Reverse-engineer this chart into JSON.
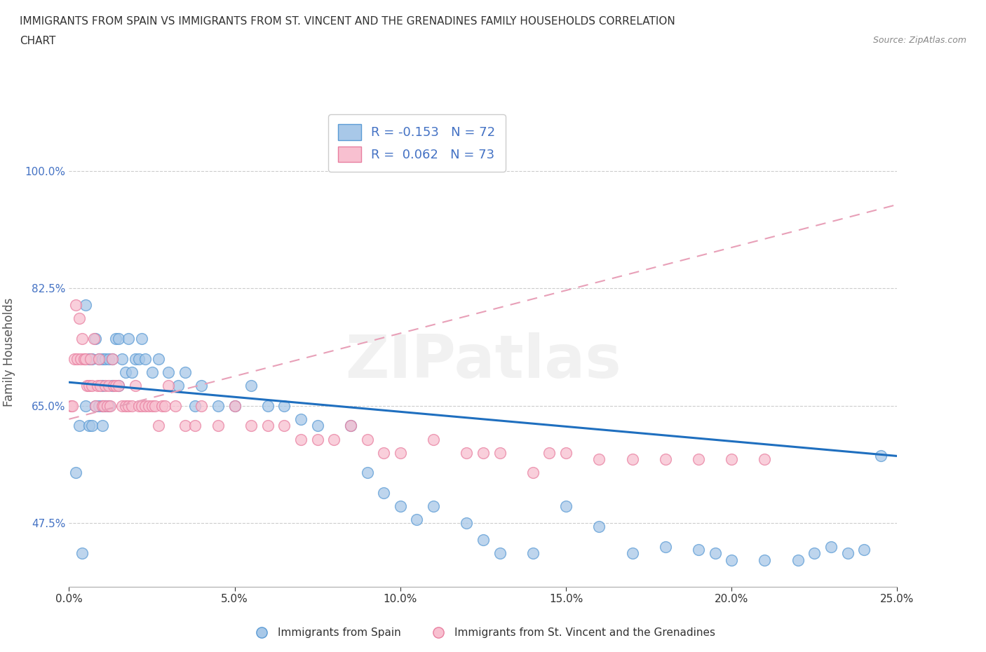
{
  "title_line1": "IMMIGRANTS FROM SPAIN VS IMMIGRANTS FROM ST. VINCENT AND THE GRENADINES FAMILY HOUSEHOLDS CORRELATION",
  "title_line2": "CHART",
  "source": "Source: ZipAtlas.com",
  "ylabel": "Family Households",
  "xlabel": "",
  "xlim": [
    0.0,
    25.0
  ],
  "ylim": [
    38.0,
    108.0
  ],
  "xticks": [
    0.0,
    5.0,
    10.0,
    15.0,
    20.0,
    25.0
  ],
  "yticks": [
    47.5,
    65.0,
    82.5,
    100.0
  ],
  "ytick_labels": [
    "47.5%",
    "65.0%",
    "82.5%",
    "100.0%"
  ],
  "xtick_labels": [
    "0.0%",
    "5.0%",
    "10.0%",
    "15.0%",
    "20.0%",
    "25.0%"
  ],
  "spain_color": "#A8C8E8",
  "spain_edge_color": "#5B9BD5",
  "stvincent_color": "#F8C0D0",
  "stvincent_edge_color": "#E87FA0",
  "spain_R": -0.153,
  "spain_N": 72,
  "stvincent_R": 0.062,
  "stvincent_N": 73,
  "legend_label_spain": "R = -0.153   N = 72",
  "legend_label_stvincent": "R =  0.062   N = 73",
  "legend_label_spain_bottom": "Immigrants from Spain",
  "legend_label_stvincent_bottom": "Immigrants from St. Vincent and the Grenadines",
  "trendline_spain_color": "#1F6FBF",
  "trendline_stvincent_color": "#E8A0B8",
  "watermark": "ZIPatlas",
  "background_color": "#FFFFFF",
  "spain_x": [
    0.2,
    0.3,
    0.4,
    0.5,
    0.5,
    0.6,
    0.6,
    0.7,
    0.7,
    0.8,
    0.8,
    0.9,
    0.9,
    1.0,
    1.0,
    1.0,
    1.0,
    1.1,
    1.1,
    1.2,
    1.2,
    1.3,
    1.3,
    1.4,
    1.5,
    1.5,
    1.6,
    1.7,
    1.8,
    1.9,
    2.0,
    2.1,
    2.2,
    2.3,
    2.5,
    2.7,
    3.0,
    3.3,
    3.5,
    3.8,
    4.0,
    4.5,
    5.0,
    5.5,
    6.0,
    6.5,
    7.0,
    7.5,
    8.5,
    9.0,
    9.5,
    10.0,
    10.5,
    11.0,
    12.0,
    12.5,
    13.0,
    14.0,
    15.0,
    16.0,
    17.0,
    18.0,
    19.0,
    19.5,
    20.0,
    21.0,
    22.0,
    22.5,
    23.0,
    23.5,
    24.0,
    24.5
  ],
  "spain_y": [
    55.0,
    62.0,
    43.0,
    65.0,
    80.0,
    62.0,
    72.0,
    62.0,
    72.0,
    65.0,
    75.0,
    65.0,
    72.0,
    62.0,
    65.0,
    68.0,
    72.0,
    65.0,
    72.0,
    65.0,
    72.0,
    68.0,
    72.0,
    75.0,
    68.0,
    75.0,
    72.0,
    70.0,
    75.0,
    70.0,
    72.0,
    72.0,
    75.0,
    72.0,
    70.0,
    72.0,
    70.0,
    68.0,
    70.0,
    65.0,
    68.0,
    65.0,
    65.0,
    68.0,
    65.0,
    65.0,
    63.0,
    62.0,
    62.0,
    55.0,
    52.0,
    50.0,
    48.0,
    50.0,
    47.5,
    45.0,
    43.0,
    43.0,
    50.0,
    47.0,
    43.0,
    44.0,
    43.5,
    43.0,
    42.0,
    42.0,
    42.0,
    43.0,
    44.0,
    43.0,
    43.5,
    57.5
  ],
  "stvincent_x": [
    0.05,
    0.1,
    0.15,
    0.2,
    0.25,
    0.3,
    0.35,
    0.4,
    0.45,
    0.5,
    0.55,
    0.6,
    0.65,
    0.7,
    0.75,
    0.8,
    0.85,
    0.9,
    0.95,
    1.0,
    1.05,
    1.1,
    1.15,
    1.2,
    1.25,
    1.3,
    1.35,
    1.4,
    1.5,
    1.6,
    1.7,
    1.8,
    1.9,
    2.0,
    2.1,
    2.2,
    2.3,
    2.4,
    2.5,
    2.6,
    2.7,
    2.8,
    2.9,
    3.0,
    3.2,
    3.5,
    3.8,
    4.0,
    4.5,
    5.0,
    5.5,
    6.0,
    6.5,
    7.0,
    7.5,
    8.0,
    8.5,
    9.0,
    9.5,
    10.0,
    11.0,
    12.0,
    12.5,
    13.0,
    14.0,
    14.5,
    15.0,
    16.0,
    17.0,
    18.0,
    19.0,
    20.0,
    21.0
  ],
  "stvincent_y": [
    65.0,
    65.0,
    72.0,
    80.0,
    72.0,
    78.0,
    72.0,
    75.0,
    72.0,
    72.0,
    68.0,
    68.0,
    72.0,
    68.0,
    75.0,
    65.0,
    68.0,
    72.0,
    68.0,
    65.0,
    65.0,
    68.0,
    65.0,
    68.0,
    65.0,
    72.0,
    68.0,
    68.0,
    68.0,
    65.0,
    65.0,
    65.0,
    65.0,
    68.0,
    65.0,
    65.0,
    65.0,
    65.0,
    65.0,
    65.0,
    62.0,
    65.0,
    65.0,
    68.0,
    65.0,
    62.0,
    62.0,
    65.0,
    62.0,
    65.0,
    62.0,
    62.0,
    62.0,
    60.0,
    60.0,
    60.0,
    62.0,
    60.0,
    58.0,
    58.0,
    60.0,
    58.0,
    58.0,
    58.0,
    55.0,
    58.0,
    58.0,
    57.0,
    57.0,
    57.0,
    57.0,
    57.0,
    57.0
  ],
  "spain_trend_x": [
    0.0,
    25.0
  ],
  "spain_trend_y": [
    68.5,
    57.5
  ],
  "stvincent_trend_x": [
    0.0,
    25.0
  ],
  "stvincent_trend_y": [
    63.0,
    95.0
  ]
}
